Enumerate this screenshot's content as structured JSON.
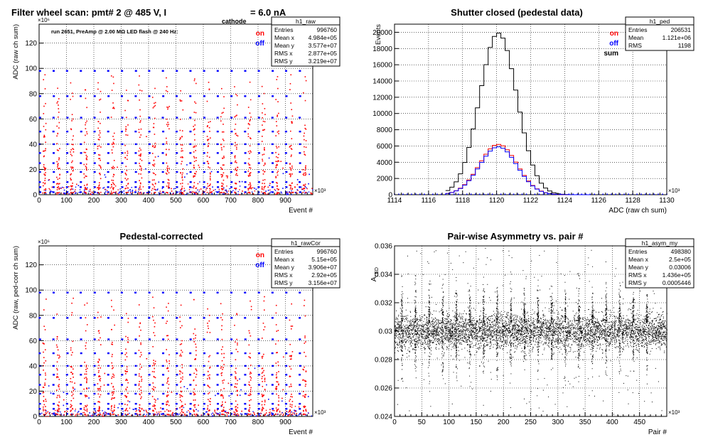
{
  "colors": {
    "on": "#ff0000",
    "off": "#0000ff",
    "sum": "#000000",
    "axis": "#000000",
    "grid": "#000000"
  },
  "chart_data": [
    {
      "type": "scatter",
      "title": "Filter wheel scan: pmt#   2 @   485 V, I",
      "title_sub": "cathode",
      "title_tail": "= 6.0 nA",
      "note": "run 2651, PreAmp @ 2.00 MΩ  LED flash @  240 Hz:",
      "xlabel": "Event #",
      "ylabel": "ADC (raw ch sum)",
      "x_exp": "×10³",
      "y_exp": "×10⁶",
      "xlim": [
        0,
        1000
      ],
      "ylim": [
        0,
        135
      ],
      "x_ticks": [
        0,
        100,
        200,
        300,
        400,
        500,
        600,
        700,
        800,
        900
      ],
      "y_ticks": [
        0,
        20,
        40,
        60,
        80,
        100,
        120
      ],
      "legend": [
        "on",
        "off"
      ],
      "grid": true,
      "cycle_length": 50,
      "levels": [
        98,
        78,
        61,
        50,
        40,
        33,
        25,
        18,
        10,
        6,
        2
      ],
      "stats": {
        "name": "h1_raw",
        "rows": [
          [
            "Entries",
            "996760"
          ],
          [
            "Mean x",
            "4.984e+05"
          ],
          [
            "Mean y",
            "3.577e+07"
          ],
          [
            "RMS x",
            "2.877e+05"
          ],
          [
            "RMS y",
            "3.219e+07"
          ]
        ]
      }
    },
    {
      "type": "line",
      "title": "Shutter closed (pedestal data)",
      "xlabel": "ADC (raw ch sum)",
      "ylabel": "Events",
      "x_exp": "×10³",
      "xlim": [
        1114,
        1130
      ],
      "ylim": [
        0,
        21000
      ],
      "x_ticks": [
        1114,
        1116,
        1118,
        1120,
        1122,
        1124,
        1126,
        1128,
        1130
      ],
      "y_ticks": [
        0,
        2000,
        4000,
        6000,
        8000,
        10000,
        12000,
        14000,
        16000,
        18000,
        20000
      ],
      "legend": [
        "on",
        "off",
        "sum"
      ],
      "grid": true,
      "series": [
        {
          "name": "sum",
          "mean": 1120.1,
          "sigma": 1.1,
          "peak": 19900
        },
        {
          "name": "on",
          "mean": 1120.1,
          "sigma": 1.1,
          "peak": 6200
        },
        {
          "name": "off",
          "mean": 1120.1,
          "sigma": 1.1,
          "peak": 5900
        }
      ],
      "stats": {
        "name": "h1_ped",
        "rows": [
          [
            "Entries",
            "206531"
          ],
          [
            "Mean",
            "1.121e+06"
          ],
          [
            "RMS",
            "1198"
          ]
        ]
      }
    },
    {
      "type": "scatter",
      "title": "Pedestal-corrected",
      "xlabel": "Event #",
      "ylabel": "ADC (raw, ped-corr ch sum)",
      "x_exp": "×10³",
      "y_exp": "×10⁶",
      "xlim": [
        0,
        1000
      ],
      "ylim": [
        0,
        135
      ],
      "x_ticks": [
        0,
        100,
        200,
        300,
        400,
        500,
        600,
        700,
        800,
        900
      ],
      "y_ticks": [
        0,
        20,
        40,
        60,
        80,
        100,
        120
      ],
      "legend": [
        "on",
        "off"
      ],
      "grid": true,
      "cycle_length": 50,
      "levels": [
        98,
        78,
        61,
        50,
        40,
        33,
        25,
        18,
        10,
        6,
        2
      ],
      "stats": {
        "name": "h1_rawCor",
        "rows": [
          [
            "Entries",
            "996760"
          ],
          [
            "Mean x",
            "5.15e+05"
          ],
          [
            "Mean y",
            "3.906e+07"
          ],
          [
            "RMS x",
            "2.92e+05"
          ],
          [
            "RMS y",
            "3.156e+07"
          ]
        ]
      }
    },
    {
      "type": "scatter",
      "title": "Pair-wise Asymmetry vs. pair #",
      "xlabel": "Pair #",
      "ylabel": "A_LED",
      "ylabel_main": "A",
      "ylabel_sub": "LED",
      "x_exp": "×10³",
      "xlim": [
        0,
        500
      ],
      "ylim": [
        0.024,
        0.036
      ],
      "x_ticks": [
        0,
        50,
        100,
        150,
        200,
        250,
        300,
        350,
        400,
        450
      ],
      "y_ticks": [
        0.024,
        0.026,
        0.028,
        0.03,
        0.032,
        0.034,
        0.036
      ],
      "y_tick_labels": [
        "0.024",
        "0.026",
        "0.028",
        "0.03",
        "0.032",
        "0.034",
        "0.036"
      ],
      "grid": true,
      "center": 0.03,
      "band_width": 0.0006,
      "spike_spacing": 25,
      "stats": {
        "name": "h1_asym_my",
        "rows": [
          [
            "Entries",
            "498380"
          ],
          [
            "Mean x",
            "2.5e+05"
          ],
          [
            "Mean y",
            "0.03006"
          ],
          [
            "RMS x",
            "1.436e+05"
          ],
          [
            "RMS y",
            "0.0005446"
          ]
        ]
      }
    }
  ]
}
